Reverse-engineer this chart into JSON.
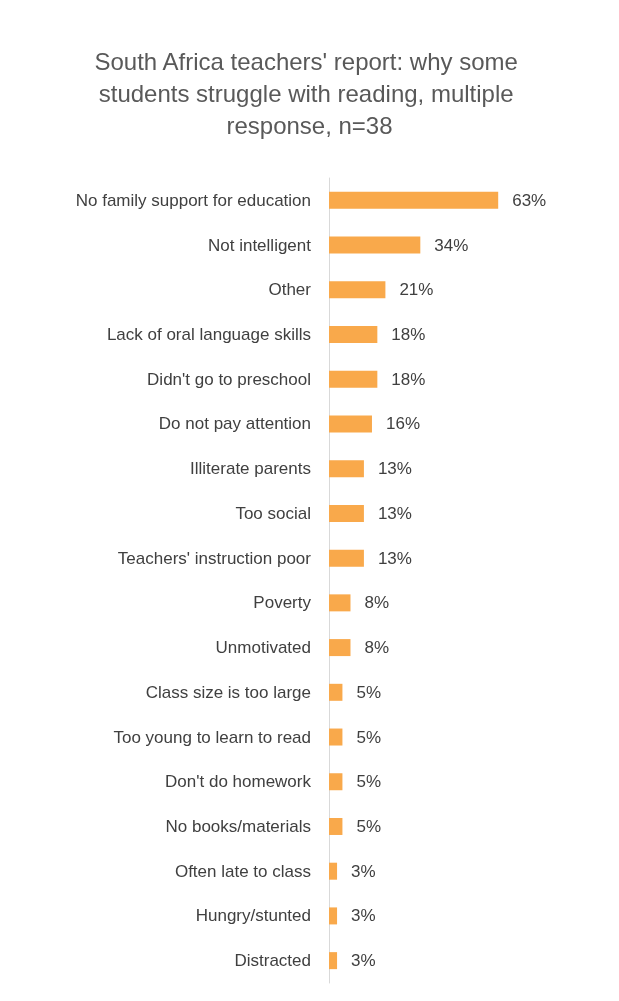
{
  "chart_data": {
    "type": "bar",
    "orientation": "horizontal",
    "title": "South Africa teachers' report: why some students struggle with reading, multiple response, n=38",
    "categories": [
      "No family support for education",
      "Not intelligent",
      "Other",
      "Lack of oral language skills",
      "Didn't go to preschool",
      "Do not pay attention",
      "Illiterate parents",
      "Too social",
      "Teachers' instruction poor",
      "Poverty",
      "Unmotivated",
      "Class size is too large",
      "Too young to learn to read",
      "Don't do homework",
      "No books/materials",
      "Often late to class",
      "Hungry/stunted",
      "Distracted"
    ],
    "values": [
      63,
      34,
      21,
      18,
      18,
      16,
      13,
      13,
      13,
      8,
      8,
      5,
      5,
      5,
      5,
      3,
      3,
      3
    ],
    "value_labels": [
      "63%",
      "34%",
      "21%",
      "18%",
      "18%",
      "16%",
      "13%",
      "13%",
      "13%",
      "8%",
      "8%",
      "5%",
      "5%",
      "5%",
      "5%",
      "3%",
      "3%",
      "3%"
    ],
    "color": "#f9a94b"
  }
}
